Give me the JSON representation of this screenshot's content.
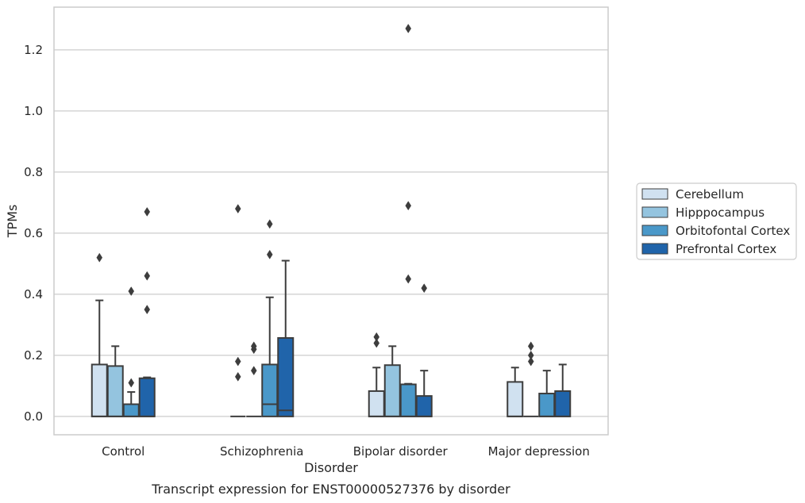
{
  "caption": "Transcript expression for ENST00000527376 by disorder",
  "colors": {
    "Cerebellum": "#d0e1f0",
    "Hipppocampus": "#94c4df",
    "Orbitofontal Cortex": "#4a98c9",
    "Prefrontal Cortex": "#2064aa",
    "box_edge": "#3d3d3d",
    "grid": "#cccccc",
    "frame": "#cccccc"
  },
  "chart_data": {
    "type": "boxplot",
    "title": "",
    "xlabel": "Disorder",
    "ylabel": "TPMs",
    "ylim": [
      -0.06,
      1.34
    ],
    "yticks": [
      0.0,
      0.2,
      0.4,
      0.6,
      0.8,
      1.0,
      1.2
    ],
    "ytick_labels": [
      "0.0",
      "0.2",
      "0.4",
      "0.6",
      "0.8",
      "1.0",
      "1.2"
    ],
    "grid": "horizontal",
    "legend_position": "right",
    "categories": [
      "Control",
      "Schizophrenia",
      "Bipolar disorder",
      "Major depression"
    ],
    "series": [
      {
        "name": "Cerebellum",
        "boxes": [
          {
            "whislo": 0.0,
            "q1": 0.0,
            "med": 0.0,
            "q3": 0.17,
            "whishi": 0.38,
            "fliers": [
              0.52
            ]
          },
          {
            "whislo": 0.0,
            "q1": 0.0,
            "med": 0.0,
            "q3": 0.0,
            "whishi": 0.0,
            "fliers": [
              0.13,
              0.18,
              0.68
            ]
          },
          {
            "whislo": 0.0,
            "q1": 0.0,
            "med": 0.0,
            "q3": 0.083,
            "whishi": 0.16,
            "fliers": [
              0.24,
              0.26
            ]
          },
          {
            "whislo": 0.0,
            "q1": 0.0,
            "med": 0.0,
            "q3": 0.113,
            "whishi": 0.16,
            "fliers": []
          }
        ]
      },
      {
        "name": "Hipppocampus",
        "boxes": [
          {
            "whislo": 0.0,
            "q1": 0.0,
            "med": 0.0,
            "q3": 0.165,
            "whishi": 0.23,
            "fliers": []
          },
          {
            "whislo": 0.0,
            "q1": 0.0,
            "med": 0.0,
            "q3": 0.0,
            "whishi": 0.0,
            "fliers": [
              0.15,
              0.22,
              0.23
            ]
          },
          {
            "whislo": 0.0,
            "q1": 0.0,
            "med": 0.0,
            "q3": 0.168,
            "whishi": 0.23,
            "fliers": []
          },
          {
            "whislo": 0.0,
            "q1": 0.0,
            "med": 0.0,
            "q3": 0.0,
            "whishi": 0.0,
            "fliers": [
              0.18,
              0.2,
              0.23
            ]
          }
        ]
      },
      {
        "name": "Orbitofontal Cortex",
        "boxes": [
          {
            "whislo": 0.0,
            "q1": 0.0,
            "med": 0.0,
            "q3": 0.04,
            "whishi": 0.08,
            "fliers": [
              0.11,
              0.41
            ]
          },
          {
            "whislo": 0.0,
            "q1": 0.0,
            "med": 0.04,
            "q3": 0.17,
            "whishi": 0.39,
            "fliers": [
              0.53,
              0.63
            ]
          },
          {
            "whislo": 0.0,
            "q1": 0.0,
            "med": 0.0,
            "q3": 0.105,
            "whishi": 0.107,
            "fliers": [
              0.45,
              0.69,
              1.27
            ]
          },
          {
            "whislo": 0.0,
            "q1": 0.0,
            "med": 0.0,
            "q3": 0.075,
            "whishi": 0.15,
            "fliers": []
          }
        ]
      },
      {
        "name": "Prefrontal Cortex",
        "boxes": [
          {
            "whislo": 0.0,
            "q1": 0.0,
            "med": 0.0,
            "q3": 0.125,
            "whishi": 0.128,
            "fliers": [
              0.35,
              0.46,
              0.67
            ]
          },
          {
            "whislo": 0.0,
            "q1": 0.0,
            "med": 0.02,
            "q3": 0.257,
            "whishi": 0.51,
            "fliers": []
          },
          {
            "whislo": 0.0,
            "q1": 0.0,
            "med": 0.0,
            "q3": 0.067,
            "whishi": 0.15,
            "fliers": [
              0.42
            ]
          },
          {
            "whislo": 0.0,
            "q1": 0.0,
            "med": 0.0,
            "q3": 0.083,
            "whishi": 0.17,
            "fliers": []
          }
        ]
      }
    ]
  }
}
